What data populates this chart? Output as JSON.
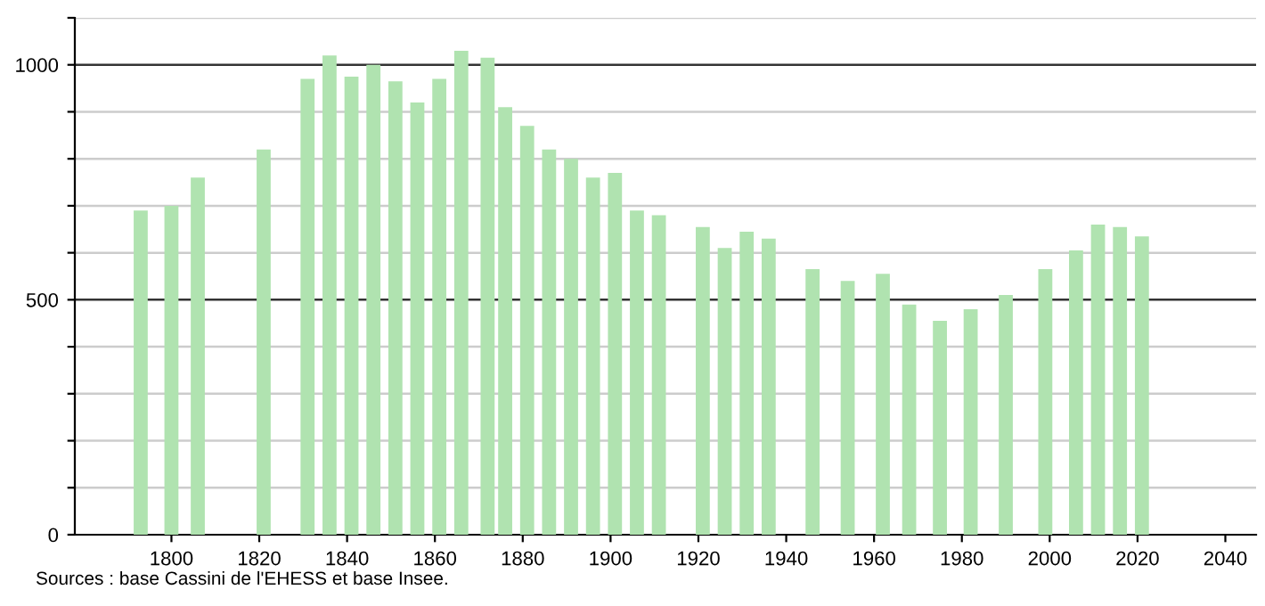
{
  "chart_data": {
    "type": "bar",
    "x": [
      1793,
      1800,
      1806,
      1821,
      1831,
      1836,
      1841,
      1846,
      1851,
      1856,
      1861,
      1866,
      1872,
      1876,
      1881,
      1886,
      1891,
      1896,
      1901,
      1906,
      1911,
      1921,
      1926,
      1931,
      1936,
      1946,
      1954,
      1962,
      1968,
      1975,
      1982,
      1990,
      1999,
      2006,
      2011,
      2016,
      2021
    ],
    "values": [
      690,
      700,
      760,
      820,
      970,
      1020,
      975,
      1000,
      965,
      920,
      970,
      1030,
      1015,
      910,
      870,
      820,
      800,
      760,
      770,
      690,
      680,
      655,
      610,
      645,
      630,
      565,
      540,
      555,
      490,
      455,
      480,
      510,
      565,
      605,
      660,
      655,
      635
    ],
    "color": "#b0e3b0",
    "xlim": [
      1778,
      2047
    ],
    "xticks": [
      1800,
      1820,
      1840,
      1860,
      1880,
      1900,
      1920,
      1940,
      1960,
      1980,
      2000,
      2020,
      2040
    ],
    "ylim": [
      0,
      1100
    ],
    "yticks": [
      0,
      {
        "value": 100,
        "label": null
      },
      {
        "value": 200,
        "label": null
      },
      {
        "value": 300,
        "label": null
      },
      {
        "value": 400,
        "label": null
      },
      500,
      {
        "value": 600,
        "label": null
      },
      {
        "value": 700,
        "label": null
      },
      {
        "value": 800,
        "label": null
      },
      {
        "value": 900,
        "label": null
      },
      1000,
      {
        "value": 1100,
        "label": null
      }
    ],
    "grid": "y",
    "annotations": [
      "Sources : base Cassini de l'EHESS et base Insee."
    ]
  }
}
